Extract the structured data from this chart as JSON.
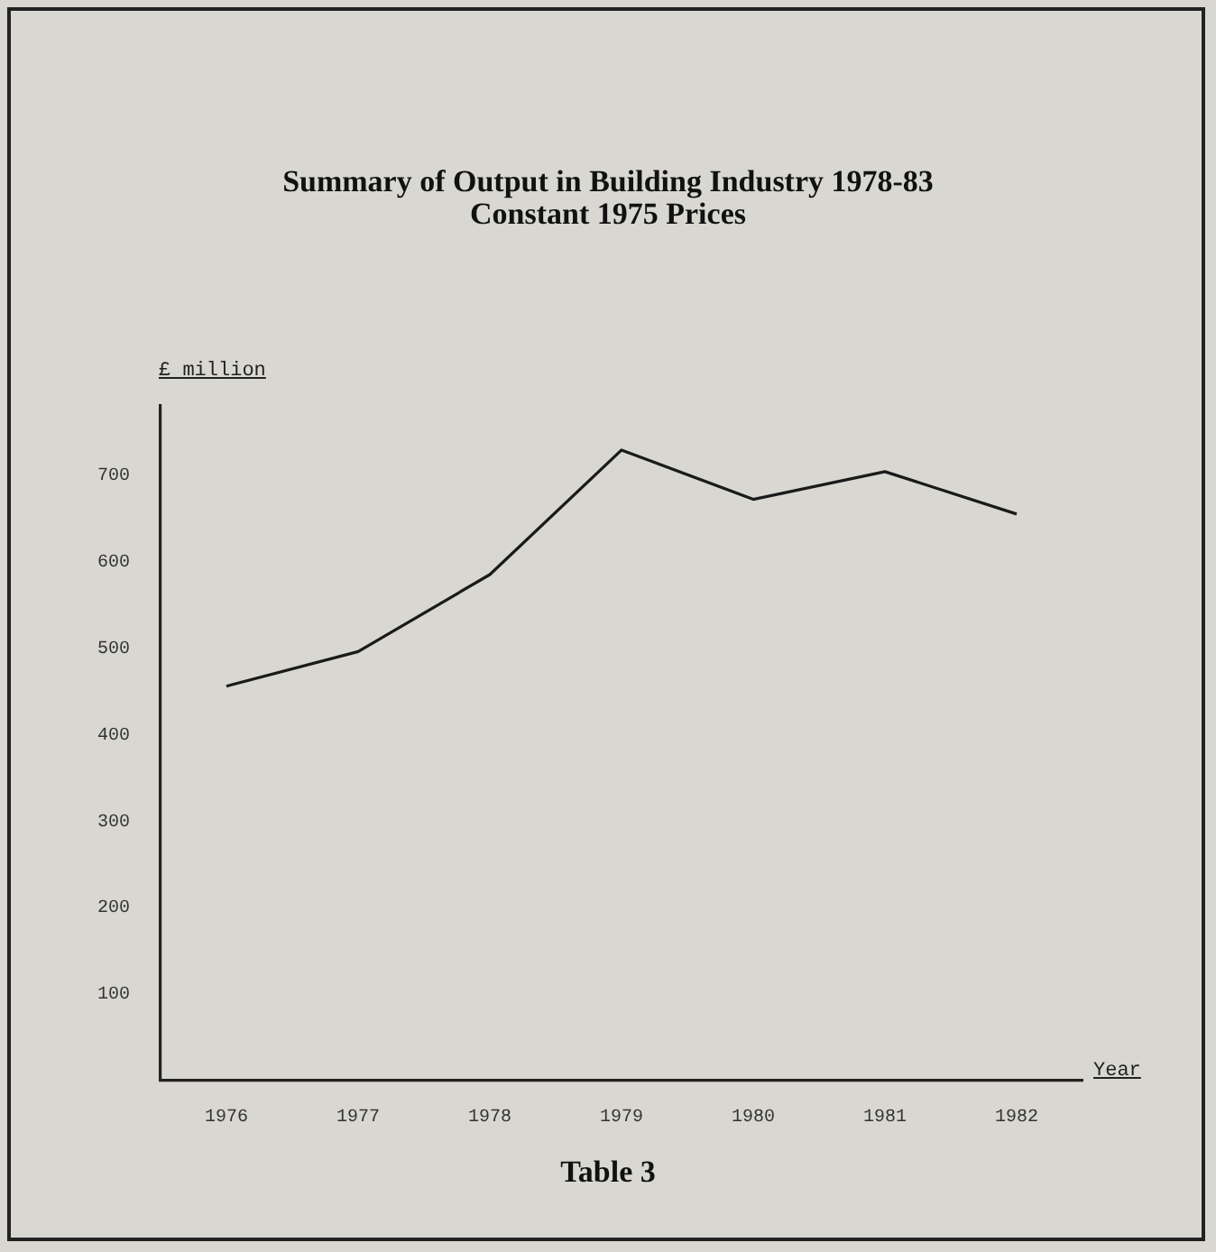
{
  "chart_data": {
    "type": "line",
    "title": "Summary of Output in Building Industry 1978-83\nConstant 1975 Prices",
    "ylabel": "£ million",
    "xlabel": "Year",
    "annotations": [
      "Table 3"
    ],
    "categories": [
      "1976",
      "1977",
      "1978",
      "1979",
      "1980",
      "1981",
      "1982"
    ],
    "series": [
      {
        "color": "#1a1a1a",
        "values": [
          456,
          496,
          585,
          729,
          672,
          704,
          655
        ]
      }
    ],
    "ylim": [
      0,
      780
    ],
    "yticks": [
      100,
      200,
      300,
      400,
      500,
      600,
      700
    ],
    "grid": false,
    "legend": false,
    "marker": "none",
    "line_style": "solid"
  }
}
